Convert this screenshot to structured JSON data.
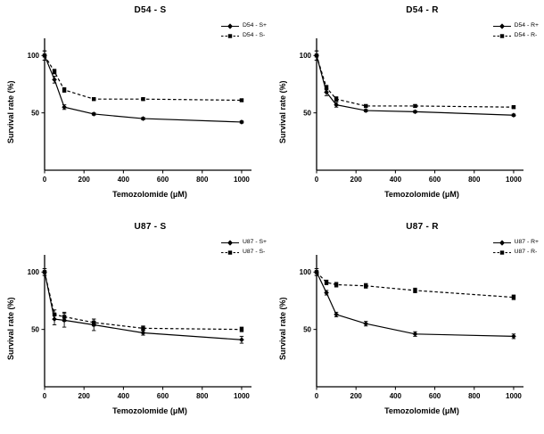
{
  "figure": {
    "background": "#ffffff",
    "ink_color": "#000000"
  },
  "chart_data": [
    {
      "type": "line",
      "title": "D54 - S",
      "xlabel": "Temozolomide (μM)",
      "ylabel": "Survival rate  (%)",
      "xlim": [
        0,
        1050
      ],
      "ylim": [
        0,
        115
      ],
      "xticks": [
        0,
        200,
        400,
        600,
        800,
        1000
      ],
      "yticks": [
        50,
        100
      ],
      "legend_position": "top-right",
      "grid": false,
      "x": [
        0,
        50,
        100,
        250,
        500,
        1000
      ],
      "series": [
        {
          "name": "D54 - S+",
          "line": "solid",
          "marker": "diamond",
          "values": [
            100,
            79,
            55,
            49,
            45,
            42
          ],
          "errors": [
            4,
            3,
            2,
            1,
            1,
            1
          ]
        },
        {
          "name": "D54 - S-",
          "line": "dashed",
          "marker": "square",
          "values": [
            100,
            86,
            70,
            62,
            62,
            61
          ],
          "errors": [
            4,
            2,
            2,
            1,
            1,
            1
          ]
        }
      ]
    },
    {
      "type": "line",
      "title": "D54 - R",
      "xlabel": "Temozolomide (μM)",
      "ylabel": "Survival rate  (%)",
      "xlim": [
        0,
        1050
      ],
      "ylim": [
        0,
        115
      ],
      "xticks": [
        0,
        200,
        400,
        600,
        800,
        1000
      ],
      "yticks": [
        50,
        100
      ],
      "legend_position": "top-right",
      "grid": false,
      "x": [
        0,
        50,
        100,
        250,
        500,
        1000
      ],
      "series": [
        {
          "name": "D54 - R+",
          "line": "solid",
          "marker": "diamond",
          "values": [
            100,
            68,
            57,
            52,
            51,
            48
          ],
          "errors": [
            4,
            3,
            2,
            1,
            1,
            1
          ]
        },
        {
          "name": "D54 - R-",
          "line": "dashed",
          "marker": "square",
          "values": [
            100,
            72,
            62,
            56,
            56,
            55
          ],
          "errors": [
            4,
            2,
            2,
            1,
            1,
            1
          ]
        }
      ]
    },
    {
      "type": "line",
      "title": "U87 - S",
      "xlabel": "Temozolomide (μM)",
      "ylabel": "Survival rate  (%)",
      "xlim": [
        0,
        1050
      ],
      "ylim": [
        0,
        115
      ],
      "xticks": [
        0,
        200,
        400,
        600,
        800,
        1000
      ],
      "yticks": [
        50,
        100
      ],
      "legend_position": "top-right",
      "grid": false,
      "x": [
        0,
        50,
        100,
        250,
        500,
        1000
      ],
      "series": [
        {
          "name": "U87 - S+",
          "line": "solid",
          "marker": "diamond",
          "values": [
            100,
            59,
            58,
            54,
            47,
            41
          ],
          "errors": [
            3,
            5,
            6,
            5,
            2,
            3
          ]
        },
        {
          "name": "U87 - S-",
          "line": "dashed",
          "marker": "square",
          "values": [
            100,
            63,
            61,
            56,
            51,
            50
          ],
          "errors": [
            3,
            4,
            4,
            3,
            2,
            2
          ]
        }
      ]
    },
    {
      "type": "line",
      "title": "U87 - R",
      "xlabel": "Temozolomide (μM)",
      "ylabel": "Survival rate  (%)",
      "xlim": [
        0,
        1050
      ],
      "ylim": [
        0,
        115
      ],
      "xticks": [
        0,
        200,
        400,
        600,
        800,
        1000
      ],
      "yticks": [
        50,
        100
      ],
      "legend_position": "top-right",
      "grid": false,
      "x": [
        0,
        50,
        100,
        250,
        500,
        1000
      ],
      "series": [
        {
          "name": "U87 - R+",
          "line": "solid",
          "marker": "diamond",
          "values": [
            100,
            82,
            63,
            55,
            46,
            44
          ],
          "errors": [
            3,
            2,
            2,
            2,
            2,
            2
          ]
        },
        {
          "name": "U87 - R-",
          "line": "dashed",
          "marker": "square",
          "values": [
            100,
            91,
            89,
            88,
            84,
            78
          ],
          "errors": [
            3,
            2,
            2,
            2,
            2,
            2
          ]
        }
      ]
    }
  ]
}
